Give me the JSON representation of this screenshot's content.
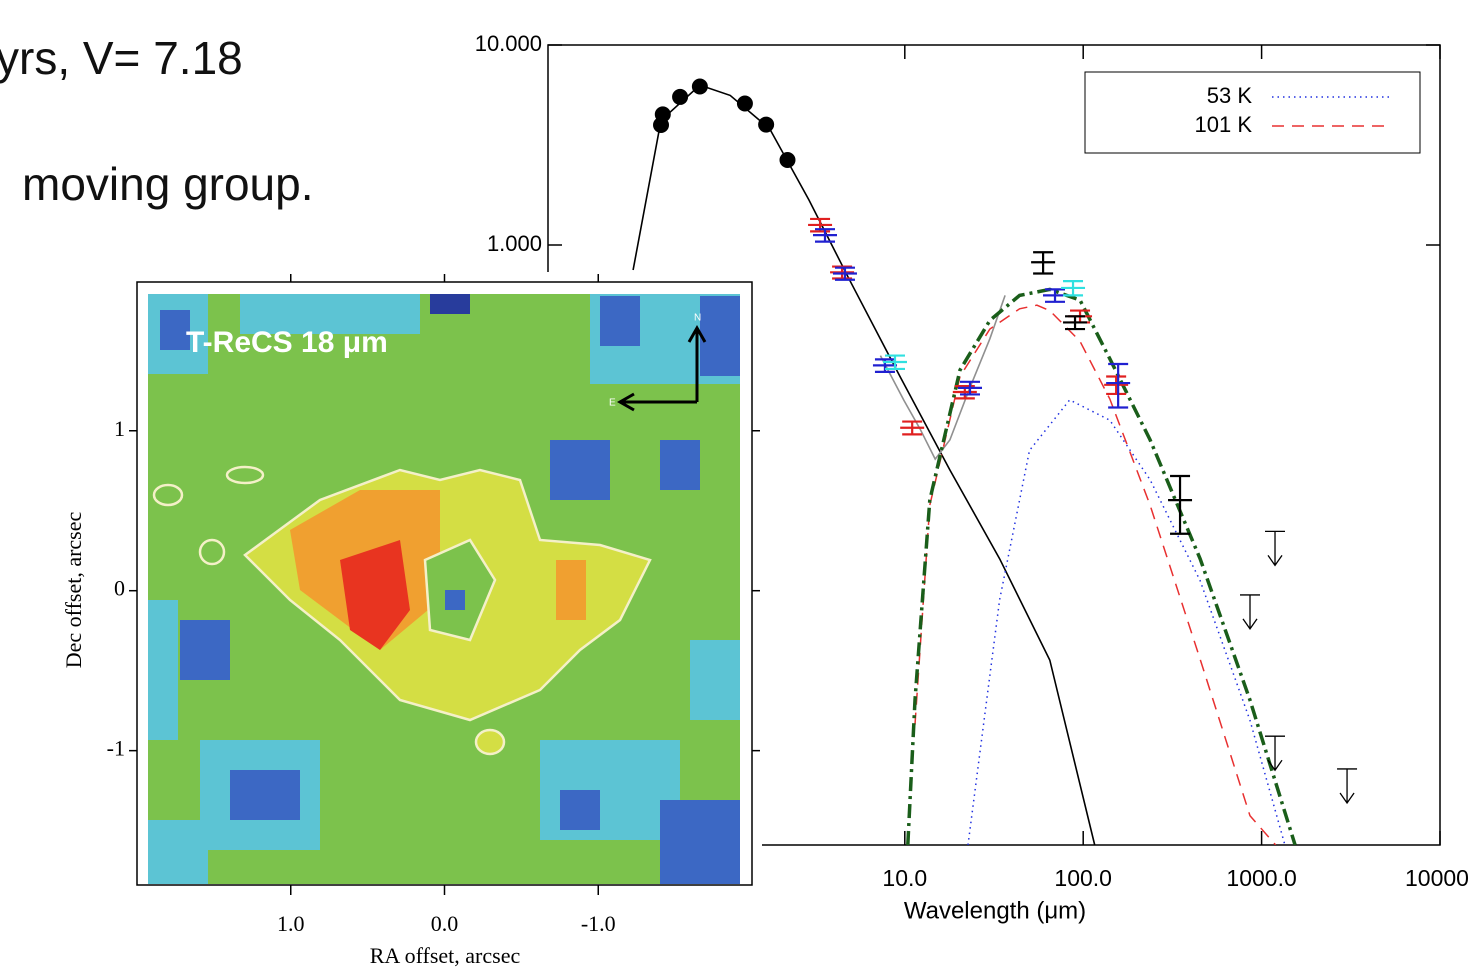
{
  "slide": {
    "lines": [
      "yrs, V= 7.18",
      "moving group."
    ]
  },
  "chart_data": [
    {
      "type": "line",
      "xlabel": "Wavelength (μm)",
      "xscale": "log",
      "yscale": "log",
      "xlim": [
        0.1,
        10000
      ],
      "ylim": [
        0.001,
        10
      ],
      "xticks": [
        {
          "value": 10,
          "label": "10.0"
        },
        {
          "value": 100,
          "label": "100.0"
        },
        {
          "value": 1000,
          "label": "1000.0"
        },
        10000
      ],
      "yticks": [
        {
          "value": 10,
          "label": "10.000"
        },
        {
          "value": 1,
          "label": "1.000"
        }
      ],
      "legend": "upper right",
      "series": [
        {
          "style": "line",
          "color": "#000000",
          "x": [
            0.3,
            0.43,
            0.71,
            1.05,
            1.75,
            2.9,
            4.9,
            9.4,
            17.9,
            34,
            65,
            116
          ],
          "values": [
            0.75,
            4.2,
            6.3,
            5.6,
            3.8,
            1.68,
            0.67,
            0.22,
            0.075,
            0.027,
            0.0084,
            0.001
          ]
        },
        {
          "style": "line",
          "color": "#909090",
          "x": [
            7.3,
            9.9,
            12.2,
            14.8,
            17.9,
            23,
            30,
            36.5
          ],
          "values": [
            0.28,
            0.167,
            0.12,
            0.085,
            0.106,
            0.19,
            0.34,
            0.56
          ]
        },
        {
          "style": "points",
          "color": "#000000",
          "x": [
            0.43,
            0.44,
            0.55,
            0.71,
            1.27,
            1.67,
            2.2
          ],
          "values": [
            3.98,
            4.5,
            5.5,
            6.2,
            5.1,
            4.0,
            2.66
          ]
        },
        {
          "name": "53 K",
          "style": "dotted",
          "color": "#2030e0",
          "x": [
            22.6,
            34,
            50,
            84,
            141,
            237,
            452,
            861,
            1350
          ],
          "values": [
            0.001,
            0.0168,
            0.094,
            0.168,
            0.133,
            0.067,
            0.021,
            0.0042,
            0.001
          ]
        },
        {
          "name": "101 K",
          "style": "dashed",
          "color": "#e83030",
          "x": [
            11.4,
            13.8,
            20.4,
            30,
            44,
            55,
            65,
            96,
            141,
            237,
            452,
            861,
            1200
          ],
          "values": [
            0.004,
            0.05,
            0.22,
            0.38,
            0.48,
            0.5,
            0.47,
            0.33,
            0.17,
            0.05,
            0.0085,
            0.0014,
            0.001
          ]
        },
        {
          "style": "dashdot",
          "color": "#1a5e1a",
          "x": [
            10.4,
            11.4,
            13.8,
            20.4,
            30,
            44,
            65,
            96,
            141,
            237,
            452,
            861,
            1540
          ],
          "values": [
            0.001,
            0.0053,
            0.053,
            0.237,
            0.42,
            0.56,
            0.6,
            0.53,
            0.27,
            0.106,
            0.027,
            0.0053,
            0.001
          ]
        },
        {
          "style": "errorbar",
          "color": "#e02020",
          "x": [
            3.35,
            4.45,
            11.0,
            21.7,
            96,
            153
          ],
          "values": [
            1.26,
            0.73,
            0.122,
            0.184,
            0.44,
            0.2
          ],
          "errors": [
            0.09,
            0.05,
            0.009,
            0.013,
            0.03,
            0.02
          ]
        },
        {
          "style": "errorbar",
          "color": "#2020d0",
          "x": [
            3.57,
            4.62,
            7.74,
            23.2,
            69.5,
            157
          ],
          "values": [
            1.12,
            0.72,
            0.25,
            0.193,
            0.56,
            0.204
          ],
          "errors": [
            0.08,
            0.05,
            0.018,
            0.014,
            0.04,
            0.05
          ]
        },
        {
          "style": "errorbar",
          "color": "#30e0e0",
          "x": [
            8.81,
            87.7
          ],
          "values": [
            0.26,
            0.61
          ],
          "errors": [
            0.02,
            0.05
          ]
        },
        {
          "style": "errorbar",
          "color": "#000000",
          "x": [
            59.6,
            90,
            349
          ],
          "values": [
            0.82,
            0.41,
            0.053
          ],
          "errors": [
            0.1,
            0.03,
            0.017
          ]
        },
        {
          "style": "upperlimit",
          "color": "#000000",
          "x": [
            1189,
            861,
            1189,
            3013
          ],
          "values": [
            0.037,
            0.0178,
            0.0035,
            0.0024
          ]
        }
      ]
    },
    {
      "type": "image",
      "xlabel": "RA offset, arcsec",
      "ylabel": "Dec offset, arcsec",
      "annotation": "T-ReCS 18 μm",
      "compass": {
        "north": "N",
        "east": "E"
      },
      "xlim": [
        2,
        -2
      ],
      "ylim": [
        -1.84,
        1.93
      ],
      "xticks": [
        {
          "value": 1,
          "label": "1.0"
        },
        {
          "value": 0,
          "label": "0.0"
        },
        {
          "value": -1,
          "label": "-1.0"
        }
      ],
      "yticks": [
        1,
        0,
        -1
      ]
    }
  ]
}
